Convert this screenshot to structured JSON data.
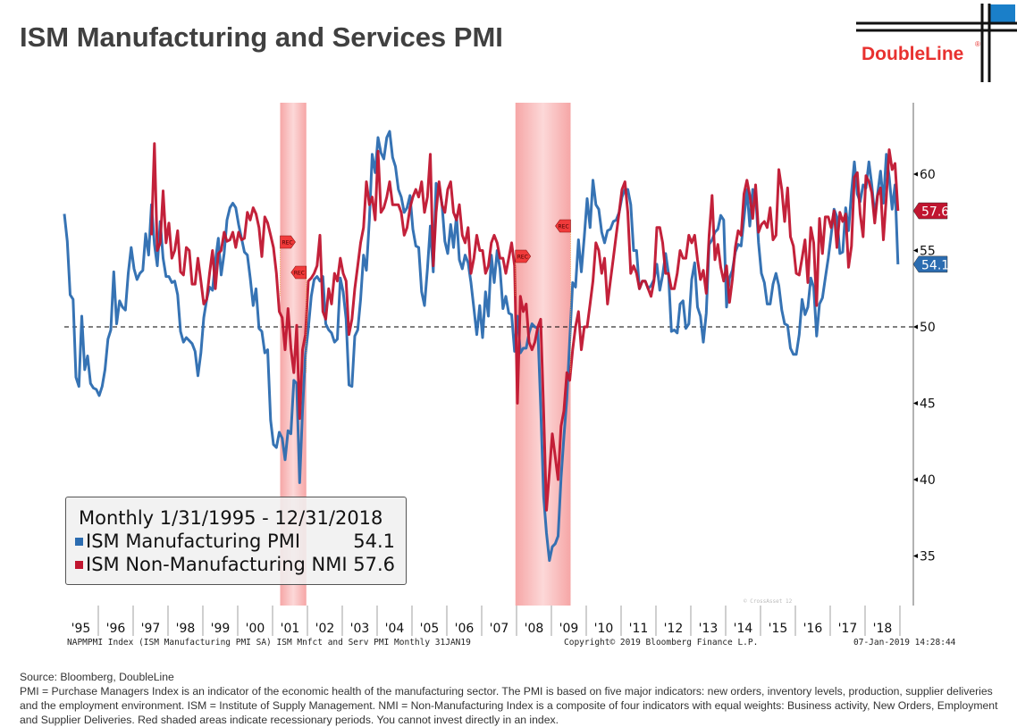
{
  "title": "ISM Manufacturing and Services PMI",
  "logo": {
    "text": "DoubleLine",
    "colors": {
      "text": "#e8312f",
      "square": "#1a7fc9",
      "lines": "#111111"
    }
  },
  "legend": {
    "header": "Monthly 1/31/1995 - 12/31/2018",
    "items": [
      {
        "label": "ISM Manufacturing PMI",
        "value": "54.1",
        "color": "#2b6cb0"
      },
      {
        "label": "ISM Non-Manufacturing NMI",
        "value": "57.6",
        "color": "#c0152f"
      }
    ]
  },
  "footer": {
    "left": "NAPMPMI Index (ISM Manufacturing PMI SA) ISM Mnfct and Serv PMI  Monthly 31JAN19",
    "center": "Copyright© 2019 Bloomberg Finance L.P.",
    "right": "07-Jan-2019 14:28:44",
    "watermark": "© CrossAsset 12"
  },
  "notes": {
    "source": "Source: Bloomberg, DoubleLine",
    "text": "PMI = Purchase Managers Index is an indicator of the economic health of the manufacturing sector. The PMI is based on five major indicators: new orders, inventory levels, production, supplier deliveries and the employment environment. ISM = Institute of Supply Management. NMI = Non-Manufacturing Index is a composite of four indicators with equal weights: Business activity, New Orders, Employment and Supplier Deliveries. Red shaded areas indicate recessionary periods. You cannot invest directly in an index."
  },
  "chart_data": {
    "type": "line",
    "title": "",
    "xlabel": "",
    "ylabel": "",
    "x_start": "1995-01",
    "x_end": "2018-12",
    "frequency": "monthly",
    "x_tick_labels": [
      "'95",
      "'96",
      "'97",
      "'98",
      "'99",
      "'00",
      "'01",
      "'02",
      "'03",
      "'04",
      "'05",
      "'06",
      "'07",
      "'08",
      "'09",
      "'10",
      "'11",
      "'12",
      "'13",
      "'14",
      "'15",
      "'16",
      "'17",
      "'18"
    ],
    "y_ticks": [
      35,
      40,
      45,
      50,
      55,
      60
    ],
    "ylim": [
      32,
      65
    ],
    "y_axis_side": "right",
    "reference_line": {
      "value": 50,
      "style": "dashed",
      "color": "#000000"
    },
    "recessions": [
      {
        "start": "2001-03",
        "end": "2001-11",
        "label": "REC"
      },
      {
        "start": "2007-12",
        "end": "2009-06",
        "label": "REC"
      }
    ],
    "recession_color": "#f6a6a6",
    "last_value_tags": [
      {
        "series": "ISM Non-Manufacturing NMI",
        "value": "57.6"
      },
      {
        "series": "ISM Manufacturing PMI",
        "value": "54.1"
      }
    ],
    "legend_position": "bottom-left",
    "grid": false,
    "series": [
      {
        "name": "ISM Manufacturing PMI",
        "color": "#2b6cb0",
        "start": "1995-01",
        "values": [
          57.4,
          55.6,
          52.1,
          51.8,
          46.7,
          46.1,
          50.7,
          47.2,
          48.1,
          46.3,
          46.0,
          45.9,
          45.5,
          46.1,
          47.2,
          49.2,
          49.8,
          53.6,
          50.2,
          51.7,
          51.3,
          51.1,
          53.5,
          55.2,
          53.8,
          53.1,
          53.5,
          53.7,
          56.1,
          54.7,
          58.0,
          55.4,
          54.0,
          56.9,
          54.5,
          53.3,
          53.3,
          52.9,
          53.0,
          52.1,
          49.7,
          49.0,
          49.3,
          49.1,
          48.9,
          48.4,
          46.8,
          48.3,
          50.6,
          51.8,
          52.6,
          52.4,
          54.3,
          55.8,
          53.4,
          54.8,
          57.0,
          57.8,
          58.1,
          57.8,
          56.7,
          55.8,
          54.9,
          54.7,
          53.2,
          51.4,
          52.5,
          49.9,
          49.7,
          48.3,
          48.5,
          43.9,
          42.3,
          42.1,
          43.1,
          42.7,
          41.3,
          43.2,
          43.0,
          46.5,
          46.3,
          39.8,
          44.5,
          48.2,
          49.9,
          52.0,
          53.1,
          53.3,
          53.0,
          53.3,
          50.2,
          49.8,
          49.6,
          49.0,
          49.2,
          53.2,
          52.3,
          50.5,
          46.2,
          46.1,
          49.4,
          49.8,
          51.8,
          54.7,
          53.7,
          57.0,
          61.3,
          60.1,
          62.4,
          61.4,
          61.0,
          62.4,
          62.8,
          61.1,
          60.5,
          59.0,
          58.5,
          57.5,
          57.8,
          58.6,
          56.4,
          55.3,
          55.2,
          52.3,
          51.4,
          53.8,
          56.6,
          53.6,
          59.4,
          59.1,
          58.1,
          55.6,
          54.8,
          56.7,
          55.2,
          57.3,
          54.4,
          53.8,
          54.7,
          54.2,
          52.9,
          51.2,
          49.5,
          51.4,
          49.3,
          52.3,
          50.7,
          54.7,
          52.9,
          55.0,
          53.8,
          51.2,
          52.0,
          50.9,
          50.8,
          48.4,
          50.7,
          48.3,
          48.6,
          48.6,
          49.6,
          50.2,
          50.0,
          49.9,
          44.8,
          38.9,
          36.5,
          34.7,
          35.6,
          35.8,
          36.3,
          40.1,
          42.8,
          45.3,
          49.1,
          52.9,
          52.6,
          55.7,
          53.6,
          55.9,
          58.4,
          56.5,
          59.6,
          58.0,
          57.7,
          56.2,
          55.5,
          56.3,
          56.4,
          56.9,
          57.0,
          57.5,
          58.5,
          59.0,
          59.0,
          58.0,
          55.0,
          55.0,
          52.5,
          53.0,
          53.0,
          52.5,
          52.7,
          53.1,
          54.1,
          52.4,
          53.4,
          54.8,
          53.5,
          49.7,
          49.8,
          49.6,
          51.5,
          51.7,
          49.9,
          50.2,
          53.1,
          54.2,
          51.3,
          50.7,
          49.0,
          50.9,
          55.4,
          55.7,
          56.2,
          56.4,
          57.3,
          57.0,
          51.3,
          53.2,
          53.7,
          54.9,
          55.4,
          55.3,
          57.1,
          59.0,
          56.6,
          59.0,
          58.7,
          55.5,
          53.5,
          52.9,
          51.5,
          51.5,
          52.8,
          53.5,
          52.7,
          51.1,
          50.2,
          50.1,
          48.6,
          48.2,
          48.2,
          49.5,
          51.8,
          50.8,
          51.3,
          53.2,
          52.6,
          49.4,
          51.5,
          51.9,
          53.2,
          54.5,
          56.0,
          57.7,
          57.2,
          54.8,
          54.9,
          57.8,
          56.3,
          58.8,
          60.8,
          58.7,
          58.2,
          59.3,
          59.1,
          60.8,
          59.3,
          57.3,
          58.7,
          60.2,
          58.1,
          61.3,
          59.8,
          57.7,
          59.3,
          54.1
        ]
      },
      {
        "name": "ISM Non-Manufacturing NMI",
        "color": "#c0152f",
        "start": "1997-07",
        "values": [
          56.0,
          62.0,
          55.0,
          55.5,
          58.9,
          55.5,
          56.8,
          54.5,
          55.0,
          56.3,
          53.6,
          53.4,
          55.2,
          55.0,
          52.8,
          52.8,
          54.5,
          53.0,
          51.5,
          51.8,
          53.5,
          55.0,
          52.5,
          54.8,
          55.0,
          56.2,
          55.6,
          55.7,
          56.2,
          55.2,
          56.2,
          55.7,
          55.8,
          57.5,
          57.0,
          57.8,
          57.4,
          56.5,
          54.6,
          57.2,
          56.8,
          56.0,
          55.2,
          53.5,
          51.0,
          50.6,
          48.5,
          51.2,
          48.6,
          47.0,
          50.1,
          44.0,
          48.5,
          49.5,
          53.0,
          53.2,
          53.5,
          54.0,
          56.0,
          51.0,
          50.5,
          52.5,
          51.5,
          53.5,
          53.0,
          54.5,
          53.5,
          53.0,
          49.5,
          50.5,
          52.5,
          54.0,
          55.5,
          56.5,
          59.5,
          58.0,
          58.5,
          57.0,
          61.5,
          57.5,
          57.8,
          58.5,
          59.5,
          58.0,
          58.0,
          58.0,
          57.5,
          56.0,
          56.5,
          57.8,
          58.5,
          59.0,
          58.5,
          59.5,
          57.5,
          58.5,
          61.3,
          54.0,
          57.5,
          59.5,
          58.0,
          57.5,
          59.0,
          59.5,
          57.5,
          57.0,
          58.0,
          56.0,
          55.5,
          56.5,
          53.5,
          54.5,
          56.0,
          55.0,
          55.0,
          53.5,
          54.0,
          55.5,
          56.0,
          55.5,
          54.5,
          54.5,
          53.5,
          54.5,
          55.5,
          54.0,
          45.0,
          52.0,
          51.0,
          51.5,
          49.0,
          48.5,
          49.0,
          50.0,
          50.5,
          44.5,
          38.0,
          40.5,
          43.0,
          41.5,
          40.0,
          43.5,
          44.5,
          47.0,
          46.5,
          48.5,
          50.0,
          51.0,
          48.5,
          50.0,
          50.0,
          51.5,
          53.0,
          55.5,
          55.0,
          53.5,
          54.5,
          51.5,
          53.0,
          54.5,
          56.0,
          57.5,
          59.0,
          59.5,
          57.5,
          53.5,
          54.0,
          53.5,
          52.5,
          53.0,
          53.0,
          52.5,
          52.0,
          53.0,
          56.5,
          56.5,
          55.5,
          53.5,
          53.5,
          52.5,
          52.5,
          53.5,
          55.0,
          54.5,
          54.5,
          56.0,
          55.5,
          56.0,
          54.4,
          53.1,
          53.7,
          52.2,
          56.0,
          58.6,
          54.4,
          55.4,
          53.9,
          53.0,
          54.0,
          51.6,
          53.1,
          55.2,
          56.3,
          56.0,
          58.7,
          59.6,
          58.6,
          57.1,
          59.3,
          56.2,
          56.7,
          56.9,
          56.5,
          57.8,
          55.7,
          56.0,
          60.3,
          59.0,
          56.9,
          59.1,
          55.9,
          55.3,
          53.5,
          53.4,
          54.5,
          55.7,
          52.9,
          56.5,
          55.5,
          51.4,
          57.1,
          54.8,
          57.2,
          57.2,
          56.5,
          57.6,
          55.2,
          57.5,
          56.9,
          57.4,
          53.9,
          55.3,
          59.8,
          60.1,
          57.4,
          55.9,
          59.9,
          59.5,
          58.8,
          56.8,
          58.6,
          59.1,
          55.7,
          58.5,
          61.6,
          60.3,
          60.7,
          57.6
        ]
      }
    ]
  }
}
